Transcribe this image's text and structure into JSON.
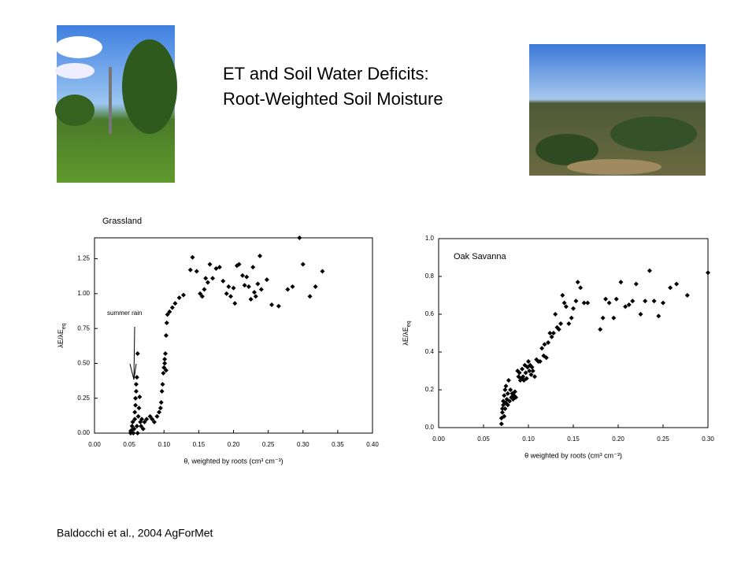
{
  "header": {
    "title_lines": [
      "ET and Soil Water Deficits:",
      "Root-Weighted Soil Moisture"
    ]
  },
  "citation": "Baldocchi et al., 2004 AgForMet",
  "chart_data": [
    {
      "type": "scatter",
      "title": "Grassland",
      "marker": "diamond",
      "color": "#000000",
      "xlabel": "θ, weighted by roots (cm³ cm⁻³)",
      "ylabel": "λE/λE",
      "ylabel_sub": "eq",
      "annotation": "summer rain",
      "xlim": [
        0,
        0.4
      ],
      "ylim": [
        0,
        1.4
      ],
      "xticks": [
        {
          "value": 0,
          "label": "0.00"
        },
        {
          "value": 0.05,
          "label": "0.05"
        },
        {
          "value": 0.1,
          "label": "0.10"
        },
        {
          "value": 0.15,
          "label": "0.15"
        },
        {
          "value": 0.2,
          "label": "0.20"
        },
        {
          "value": 0.25,
          "label": "0.25"
        },
        {
          "value": 0.3,
          "label": "0.30"
        },
        {
          "value": 0.35,
          "label": "0.35"
        },
        {
          "value": 0.4,
          "label": "0.40"
        }
      ],
      "yticks": [
        {
          "value": 0,
          "label": "0.00"
        },
        0.25,
        {
          "value": 0.5,
          "label": "0.50"
        },
        0.75,
        {
          "value": 1,
          "label": "1.00"
        },
        1.25
      ],
      "x": [
        0.052,
        0.053,
        0.054,
        0.055,
        0.056,
        0.057,
        0.058,
        0.058,
        0.059,
        0.059,
        0.06,
        0.06,
        0.061,
        0.062,
        0.061,
        0.062,
        0.063,
        0.064,
        0.065,
        0.066,
        0.067,
        0.068,
        0.07,
        0.072,
        0.075,
        0.08,
        0.083,
        0.086,
        0.09,
        0.093,
        0.095,
        0.096,
        0.097,
        0.098,
        0.099,
        0.1,
        0.101,
        0.101,
        0.102,
        0.103,
        0.103,
        0.104,
        0.105,
        0.108,
        0.112,
        0.116,
        0.122,
        0.128,
        0.138,
        0.141,
        0.147,
        0.152,
        0.155,
        0.158,
        0.16,
        0.163,
        0.166,
        0.17,
        0.175,
        0.18,
        0.185,
        0.19,
        0.193,
        0.196,
        0.2,
        0.202,
        0.205,
        0.208,
        0.213,
        0.216,
        0.219,
        0.222,
        0.225,
        0.228,
        0.23,
        0.232,
        0.235,
        0.238,
        0.24,
        0.248,
        0.255,
        0.265,
        0.278,
        0.285,
        0.295,
        0.3,
        0.31,
        0.318,
        0.328
      ],
      "values": [
        0,
        0.02,
        0.05,
        0.08,
        0,
        0.03,
        0.1,
        0.15,
        0.2,
        0.25,
        0.3,
        0.35,
        0.4,
        0.57,
        0.05,
        0,
        0.12,
        0.18,
        0.26,
        0.08,
        0.05,
        0.1,
        0.03,
        0.08,
        0.1,
        0.12,
        0.1,
        0.08,
        0.12,
        0.15,
        0.18,
        0.22,
        0.3,
        0.35,
        0.43,
        0.47,
        0.5,
        0.53,
        0.57,
        0.45,
        0.7,
        0.79,
        0.85,
        0.87,
        0.9,
        0.93,
        0.97,
        0.99,
        1.17,
        1.26,
        1.16,
        1,
        0.98,
        1.03,
        1.11,
        1.08,
        1.21,
        1.11,
        1.18,
        1.19,
        1.09,
        1,
        1.05,
        0.98,
        1.04,
        0.93,
        1.2,
        1.21,
        1.13,
        1.06,
        1.12,
        1.05,
        0.96,
        1.19,
        1.01,
        0.98,
        1.07,
        1.27,
        1.03,
        1.1,
        0.92,
        0.91,
        1.03,
        1.05,
        1.4,
        1.21,
        0.98,
        1.05,
        1.16
      ]
    },
    {
      "type": "scatter",
      "title": "Oak Savanna",
      "marker": "diamond",
      "color": "#000000",
      "xlabel": "θ weighted by roots (cm³ cm⁻³)",
      "ylabel": "λE/λE",
      "ylabel_sub": "eq",
      "xlim": [
        0,
        0.3
      ],
      "ylim": [
        0,
        1
      ],
      "xticks": [
        {
          "value": 0,
          "label": "0.00"
        },
        {
          "value": 0.05,
          "label": "0.05"
        },
        {
          "value": 0.1,
          "label": "0.10"
        },
        {
          "value": 0.15,
          "label": "0.15"
        },
        {
          "value": 0.2,
          "label": "0.20"
        },
        {
          "value": 0.25,
          "label": "0.25"
        },
        {
          "value": 0.3,
          "label": "0.30"
        }
      ],
      "yticks": [
        {
          "value": 0,
          "label": "0.0"
        },
        0.2,
        0.4,
        0.6,
        0.8,
        {
          "value": 1,
          "label": "1.0"
        }
      ],
      "x": [
        0.07,
        0.07,
        0.071,
        0.071,
        0.072,
        0.072,
        0.073,
        0.073,
        0.074,
        0.074,
        0.075,
        0.075,
        0.076,
        0.077,
        0.077,
        0.078,
        0.079,
        0.08,
        0.081,
        0.082,
        0.083,
        0.084,
        0.085,
        0.086,
        0.088,
        0.089,
        0.09,
        0.091,
        0.092,
        0.093,
        0.094,
        0.095,
        0.096,
        0.097,
        0.098,
        0.099,
        0.1,
        0.101,
        0.102,
        0.103,
        0.104,
        0.105,
        0.107,
        0.109,
        0.111,
        0.113,
        0.115,
        0.117,
        0.118,
        0.12,
        0.122,
        0.124,
        0.126,
        0.128,
        0.13,
        0.132,
        0.134,
        0.136,
        0.138,
        0.14,
        0.142,
        0.145,
        0.148,
        0.15,
        0.153,
        0.155,
        0.158,
        0.162,
        0.166,
        0.18,
        0.183,
        0.186,
        0.19,
        0.195,
        0.198,
        0.203,
        0.208,
        0.212,
        0.216,
        0.22,
        0.225,
        0.23,
        0.235,
        0.24,
        0.245,
        0.25,
        0.258,
        0.265,
        0.277,
        0.3
      ],
      "values": [
        0.02,
        0.05,
        0.08,
        0.1,
        0.12,
        0.14,
        0.06,
        0.17,
        0.2,
        0.1,
        0.13,
        0.22,
        0.15,
        0.12,
        0.18,
        0.25,
        0.14,
        0.2,
        0.16,
        0.18,
        0.15,
        0.17,
        0.19,
        0.16,
        0.3,
        0.27,
        0.29,
        0.25,
        0.26,
        0.31,
        0.27,
        0.25,
        0.33,
        0.29,
        0.26,
        0.32,
        0.35,
        0.3,
        0.33,
        0.28,
        0.32,
        0.3,
        0.27,
        0.36,
        0.35,
        0.35,
        0.42,
        0.38,
        0.44,
        0.37,
        0.45,
        0.5,
        0.48,
        0.5,
        0.6,
        0.53,
        0.52,
        0.55,
        0.7,
        0.66,
        0.64,
        0.55,
        0.58,
        0.63,
        0.67,
        0.77,
        0.74,
        0.66,
        0.66,
        0.52,
        0.58,
        0.68,
        0.66,
        0.58,
        0.68,
        0.77,
        0.64,
        0.65,
        0.67,
        0.76,
        0.6,
        0.67,
        0.83,
        0.67,
        0.59,
        0.66,
        0.74,
        0.76,
        0.7,
        0.82
      ]
    }
  ]
}
